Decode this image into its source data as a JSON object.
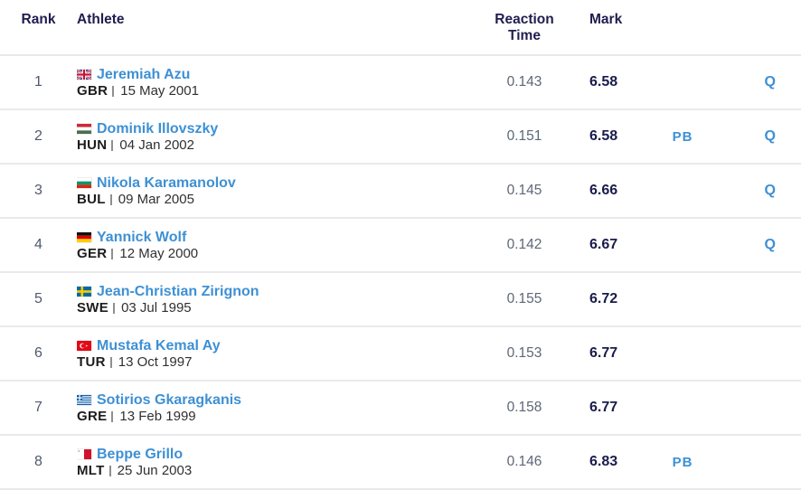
{
  "table": {
    "columns": {
      "rank": "Rank",
      "athlete": "Athlete",
      "reaction": "Reaction Time",
      "mark": "Mark"
    },
    "badge_color": "#3e90d4",
    "heading_color": "#201d4e",
    "rows": [
      {
        "rank": "1",
        "name": "Jeremiah Azu",
        "country": "GBR",
        "flag": "gbr",
        "dob": "15 May 2001",
        "reaction": "0.143",
        "mark": "6.58",
        "pb": "",
        "qual": "Q"
      },
      {
        "rank": "2",
        "name": "Dominik Illovszky",
        "country": "HUN",
        "flag": "hun",
        "dob": "04 Jan 2002",
        "reaction": "0.151",
        "mark": "6.58",
        "pb": "PB",
        "qual": "Q"
      },
      {
        "rank": "3",
        "name": "Nikola Karamanolov",
        "country": "BUL",
        "flag": "bul",
        "dob": "09 Mar 2005",
        "reaction": "0.145",
        "mark": "6.66",
        "pb": "",
        "qual": "Q"
      },
      {
        "rank": "4",
        "name": "Yannick Wolf",
        "country": "GER",
        "flag": "ger",
        "dob": "12 May 2000",
        "reaction": "0.142",
        "mark": "6.67",
        "pb": "",
        "qual": "Q"
      },
      {
        "rank": "5",
        "name": "Jean-Christian Zirignon",
        "country": "SWE",
        "flag": "swe",
        "dob": "03 Jul 1995",
        "reaction": "0.155",
        "mark": "6.72",
        "pb": "",
        "qual": ""
      },
      {
        "rank": "6",
        "name": "Mustafa Kemal Ay",
        "country": "TUR",
        "flag": "tur",
        "dob": "13 Oct 1997",
        "reaction": "0.153",
        "mark": "6.77",
        "pb": "",
        "qual": ""
      },
      {
        "rank": "7",
        "name": "Sotirios Gkaragkanis",
        "country": "GRE",
        "flag": "gre",
        "dob": "13 Feb 1999",
        "reaction": "0.158",
        "mark": "6.77",
        "pb": "",
        "qual": ""
      },
      {
        "rank": "8",
        "name": "Beppe Grillo",
        "country": "MLT",
        "flag": "mlt",
        "dob": "25 Jun 2003",
        "reaction": "0.146",
        "mark": "6.83",
        "pb": "PB",
        "qual": ""
      }
    ]
  }
}
